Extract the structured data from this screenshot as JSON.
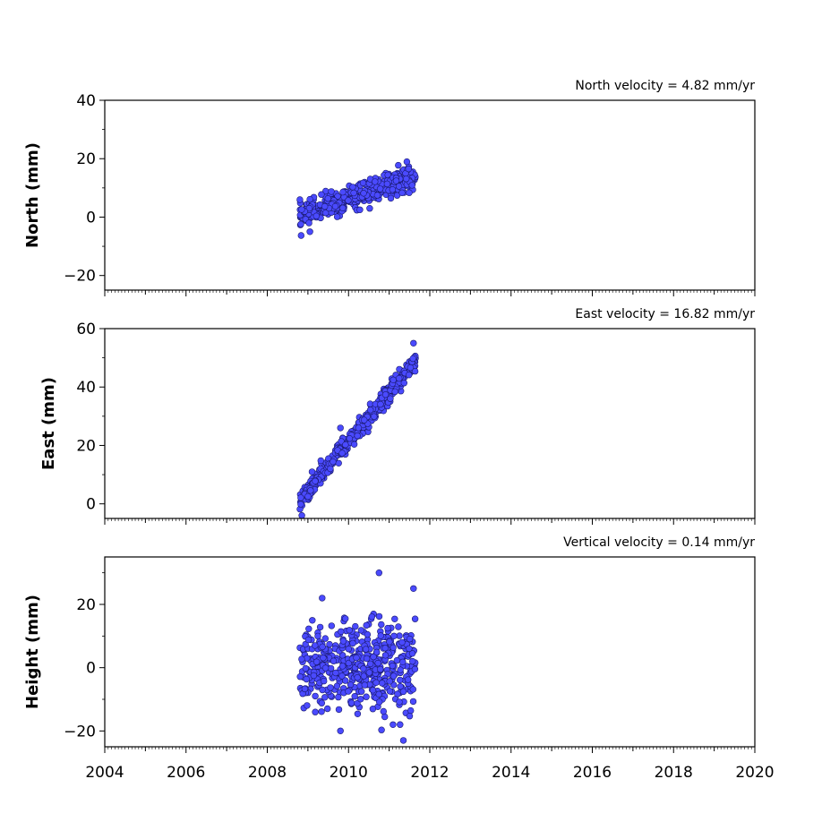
{
  "chart_data": [
    {
      "type": "scatter",
      "title": "North velocity = 4.82 mm/yr",
      "xlabel": "",
      "ylabel": "North (mm)",
      "xlim": [
        2004,
        2020
      ],
      "ylim": [
        -25,
        40
      ],
      "y_ticks": [
        -20,
        0,
        20,
        40
      ],
      "y_tick_labels": [
        "−20",
        "0",
        "20",
        "40"
      ],
      "x_tick_labels_shown": false,
      "marker_color": "#4a4aff",
      "marker_edge": "#1a1a6e",
      "data_span": [
        2008.8,
        2011.65
      ],
      "trend_rate": 4.82,
      "trend_offset": 0.5,
      "noise_sigma": 2.0,
      "point_count": 420,
      "outliers": [
        {
          "x": 2009.05,
          "y": -5
        }
      ]
    },
    {
      "type": "scatter",
      "title": "East velocity = 16.82 mm/yr",
      "xlabel": "",
      "ylabel": "East (mm)",
      "xlim": [
        2004,
        2020
      ],
      "ylim": [
        -5,
        60
      ],
      "y_ticks": [
        0,
        20,
        40,
        60
      ],
      "y_tick_labels": [
        "0",
        "20",
        "40",
        "60"
      ],
      "x_tick_labels_shown": false,
      "marker_color": "#4a4aff",
      "marker_edge": "#1a1a6e",
      "data_span": [
        2008.8,
        2011.65
      ],
      "trend_rate": 16.82,
      "trend_offset": 1.0,
      "noise_sigma": 1.6,
      "point_count": 420,
      "outliers": [
        {
          "x": 2009.8,
          "y": 26
        },
        {
          "x": 2011.6,
          "y": 55
        },
        {
          "x": 2008.85,
          "y": -4
        }
      ]
    },
    {
      "type": "scatter",
      "title": "Vertical velocity = 0.14 mm/yr",
      "xlabel": "",
      "ylabel": "Height (mm)",
      "xlim": [
        2004,
        2020
      ],
      "ylim": [
        -25,
        35
      ],
      "y_ticks": [
        -20,
        0,
        20
      ],
      "y_tick_labels": [
        "−20",
        "0",
        "20"
      ],
      "x_ticks": [
        2004,
        2006,
        2008,
        2010,
        2012,
        2014,
        2016,
        2018,
        2020
      ],
      "x_tick_labels": [
        "2004",
        "2006",
        "2008",
        "2010",
        "2012",
        "2014",
        "2016",
        "2018",
        "2020"
      ],
      "x_tick_labels_shown": true,
      "marker_color": "#4a4aff",
      "marker_edge": "#1a1a6e",
      "data_span": [
        2008.8,
        2011.65
      ],
      "trend_rate": 0.14,
      "trend_offset": 0.0,
      "noise_sigma": 7.0,
      "point_count": 460,
      "outliers": [
        {
          "x": 2010.75,
          "y": 30
        },
        {
          "x": 2011.6,
          "y": 25
        },
        {
          "x": 2011.35,
          "y": -23
        },
        {
          "x": 2009.8,
          "y": -20
        },
        {
          "x": 2009.35,
          "y": 22
        }
      ]
    }
  ]
}
